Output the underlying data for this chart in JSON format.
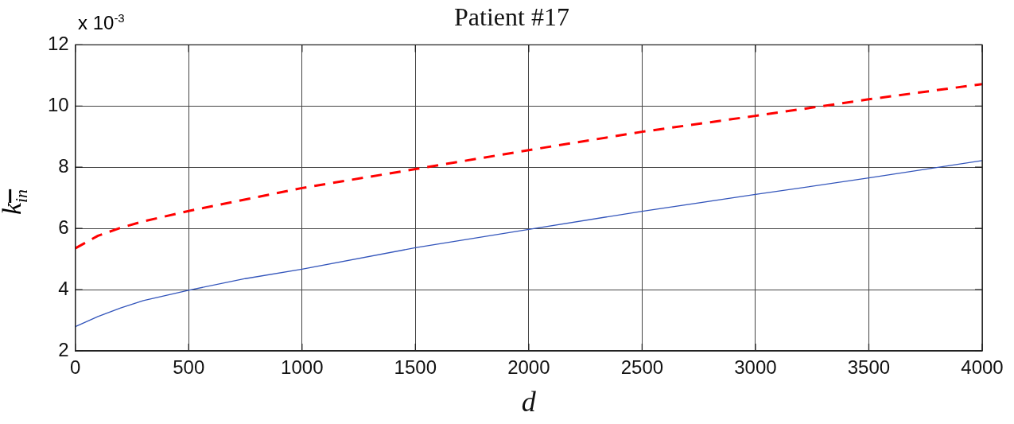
{
  "chart_data": {
    "type": "line",
    "title": "Patient #17",
    "xlabel": "d",
    "ylabel": "k$_{in}$",
    "annotations": [
      "x 10$^{-3}$"
    ],
    "xlim": [
      0,
      4000
    ],
    "xticks": [
      0,
      500,
      1000,
      1500,
      2000,
      2500,
      3000,
      3500,
      4000
    ],
    "ylim": [
      2,
      12
    ],
    "yticks": [
      2,
      4,
      6,
      8,
      10,
      12
    ],
    "grid": true,
    "marker": "none",
    "series": [
      {
        "color": "#ff0000",
        "line_style": "dashed",
        "x": [
          0,
          100,
          200,
          300,
          500,
          1000,
          1500,
          2000,
          2500,
          3000,
          3500,
          4000
        ],
        "values": [
          5.35,
          5.76,
          6.02,
          6.23,
          6.57,
          7.32,
          7.94,
          8.56,
          9.16,
          9.68,
          10.22,
          10.72
        ]
      },
      {
        "color": "#3355bb",
        "line_style": "solid",
        "x": [
          0,
          100,
          200,
          300,
          500,
          750,
          1000,
          1500,
          2000,
          2500,
          3000,
          3500,
          4000
        ],
        "values": [
          2.79,
          3.12,
          3.4,
          3.64,
          3.98,
          4.36,
          4.67,
          5.37,
          5.97,
          6.56,
          7.11,
          7.65,
          8.22
        ]
      }
    ]
  }
}
